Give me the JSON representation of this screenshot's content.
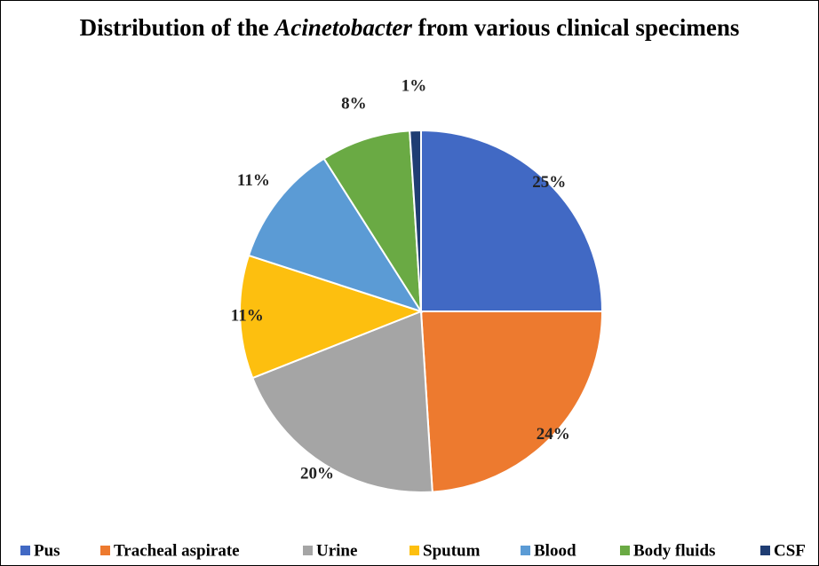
{
  "chart_data": {
    "type": "pie",
    "title": [
      "Distribution of the",
      "Acinetobacter",
      "from various clinical specimens"
    ],
    "categories": [
      "Pus",
      "Tracheal aspirate",
      "Urine",
      "Sputum",
      "Blood",
      "Body fluids",
      "CSF"
    ],
    "values": [
      25,
      24,
      20,
      11,
      11,
      8,
      1
    ],
    "value_labels": [
      "25%",
      "24%",
      "20%",
      "11%",
      "11%",
      "8%",
      "1%"
    ],
    "colors": [
      "#4169c4",
      "#ed7a2f",
      "#a5a5a5",
      "#fdbf0f",
      "#5b9bd5",
      "#6aaa44",
      "#1f3d73"
    ],
    "legend": "bottom"
  }
}
